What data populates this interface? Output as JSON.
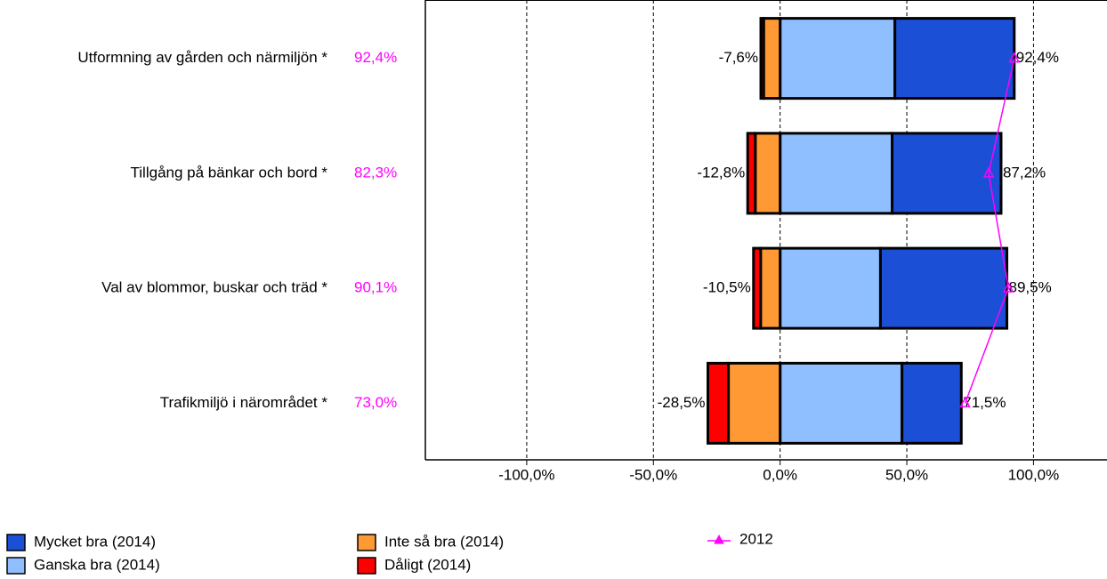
{
  "chart_data": {
    "type": "diverging_bar",
    "categories": [
      "Utformning av gården och närmiljön *",
      "Tillgång på bänkar och bord *",
      "Val av blommor, buskar och träd *",
      "Trafikmiljö i närområdet *"
    ],
    "series": [
      {
        "name": "Mycket bra (2014)",
        "color": "#1a4fd6",
        "values": [
          47.1,
          43.0,
          49.9,
          23.4
        ]
      },
      {
        "name": "Ganska bra (2014)",
        "color": "#8fbfff",
        "values": [
          45.3,
          44.2,
          39.6,
          48.1
        ]
      },
      {
        "name": "Inte så bra (2014)",
        "color": "#ff9933",
        "values": [
          -6.5,
          -9.8,
          -7.7,
          -20.4
        ]
      },
      {
        "name": "Dåligt (2014)",
        "color": "#ff0000",
        "values": [
          -1.1,
          -3.0,
          -2.8,
          -8.1
        ]
      },
      {
        "name": "2012",
        "type": "line",
        "color": "#ff00ff",
        "values": [
          92.4,
          82.3,
          90.1,
          73.0
        ],
        "value_labels": [
          "92,4%",
          "82,3%",
          "90,1%",
          "73,0%"
        ]
      }
    ],
    "positive_totals": [
      92.4,
      87.2,
      89.5,
      71.5
    ],
    "positive_total_labels": [
      "92,4%",
      "87,2%",
      "89,5%",
      "71,5%"
    ],
    "negative_totals": [
      -7.6,
      -12.8,
      -10.5,
      -28.5
    ],
    "negative_total_labels": [
      "-7,6%",
      "-12,8%",
      "-10,5%",
      "-28,5%"
    ],
    "xlim": [
      -140,
      129
    ],
    "xticks": [
      {
        "value": -100,
        "label": "-100,0%"
      },
      {
        "value": -50,
        "label": "-50,0%"
      },
      {
        "value": 0,
        "label": "0,0%"
      },
      {
        "value": 50,
        "label": "50,0%"
      },
      {
        "value": 100,
        "label": "100,0%"
      }
    ],
    "grid": true,
    "legend": "bottom"
  }
}
